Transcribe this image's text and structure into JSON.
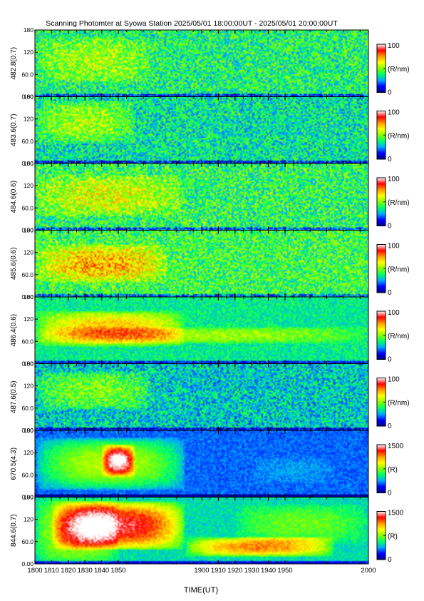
{
  "title": "Scanning Photomter at Syowa Station 2025/05/01 18:00:00UT - 2025/05/01 20:00:00UT",
  "chart_data": {
    "type": "heatmap",
    "xlabel": "TIME(UT)",
    "x_range": [
      1800,
      2000
    ],
    "x_ticks": [
      "1800",
      "1810",
      "1820",
      "1830",
      "1840",
      "1850",
      "1900",
      "1910",
      "1920",
      "1930",
      "1940",
      "1950",
      "2000"
    ],
    "y_range": [
      0,
      180
    ],
    "y_ticks": [
      "0.00",
      "60.0",
      "120",
      "180"
    ],
    "colormap": [
      "#00008b",
      "#0000ff",
      "#00aaff",
      "#00ff66",
      "#88ff00",
      "#ffff00",
      "#ff9900",
      "#ff0000",
      "#ffffff"
    ],
    "panels": [
      {
        "ylabel": "482.8(0.7)",
        "colorbar_max": "100",
        "colorbar_min": "0",
        "colorbar_unit": "(R/nm)",
        "base": 0.38,
        "noise": 0.16,
        "bands": [
          {
            "t0": 0.0,
            "t1": 0.35,
            "y0": 0.2,
            "y1": 0.9,
            "amp": 0.16
          }
        ]
      },
      {
        "ylabel": "483.6(0.7)",
        "colorbar_max": "100",
        "colorbar_min": "0",
        "colorbar_unit": "(R/nm)",
        "base": 0.34,
        "noise": 0.15,
        "bands": [
          {
            "t0": 0.0,
            "t1": 0.3,
            "y0": 0.3,
            "y1": 0.95,
            "amp": 0.2
          }
        ]
      },
      {
        "ylabel": "484.6(0.6)",
        "colorbar_max": "100",
        "colorbar_min": "0",
        "colorbar_unit": "(R/nm)",
        "base": 0.4,
        "noise": 0.17,
        "bands": [
          {
            "t0": 0.0,
            "t1": 0.45,
            "y0": 0.2,
            "y1": 0.85,
            "amp": 0.2
          }
        ]
      },
      {
        "ylabel": "485.6(0.6)",
        "colorbar_max": "100",
        "colorbar_min": "0",
        "colorbar_unit": "(R/nm)",
        "base": 0.42,
        "noise": 0.16,
        "bands": [
          {
            "t0": 0.0,
            "t1": 0.4,
            "y0": 0.2,
            "y1": 0.8,
            "amp": 0.3
          }
        ]
      },
      {
        "ylabel": "486.4(0.6)",
        "colorbar_max": "100",
        "colorbar_min": "0",
        "colorbar_unit": "(R/nm)",
        "base": 0.35,
        "noise": 0.08,
        "bands": [
          {
            "t0": 0.0,
            "t1": 0.45,
            "y0": 0.25,
            "y1": 0.8,
            "amp": 0.35
          },
          {
            "t0": 0.0,
            "t1": 1.0,
            "y0": 0.3,
            "y1": 0.55,
            "amp": 0.18
          }
        ]
      },
      {
        "ylabel": "487.6(0.5)",
        "colorbar_max": "100",
        "colorbar_min": "0",
        "colorbar_unit": "(R/nm)",
        "base": 0.3,
        "noise": 0.14,
        "bands": [
          {
            "t0": 0.0,
            "t1": 0.35,
            "y0": 0.3,
            "y1": 0.9,
            "amp": 0.2
          }
        ]
      },
      {
        "ylabel": "670.5(4.3)",
        "colorbar_max": "1500",
        "colorbar_min": "0",
        "colorbar_unit": "(R)",
        "base": 0.2,
        "noise": 0.05,
        "bands": [
          {
            "t0": 0.0,
            "t1": 0.45,
            "y0": 0.1,
            "y1": 0.9,
            "amp": 0.35
          },
          {
            "t0": 0.2,
            "t1": 0.3,
            "y0": 0.3,
            "y1": 0.8,
            "amp": 0.5
          },
          {
            "t0": 0.65,
            "t1": 0.9,
            "y0": 0.2,
            "y1": 0.6,
            "amp": 0.05
          }
        ]
      },
      {
        "ylabel": "844.6(0.7)",
        "colorbar_max": "1500",
        "colorbar_min": "0",
        "colorbar_unit": "(R)",
        "base": 0.32,
        "noise": 0.06,
        "bands": [
          {
            "t0": 0.0,
            "t1": 0.25,
            "y0": 0.0,
            "y1": 1.0,
            "amp": 0.25
          },
          {
            "t0": 0.05,
            "t1": 0.45,
            "y0": 0.2,
            "y1": 0.95,
            "amp": 0.6
          },
          {
            "t0": 0.45,
            "t1": 0.9,
            "y0": 0.1,
            "y1": 0.4,
            "amp": 0.45
          },
          {
            "t0": 0.6,
            "t1": 1.0,
            "y0": 0.3,
            "y1": 0.9,
            "amp": 0.15
          }
        ]
      }
    ]
  }
}
